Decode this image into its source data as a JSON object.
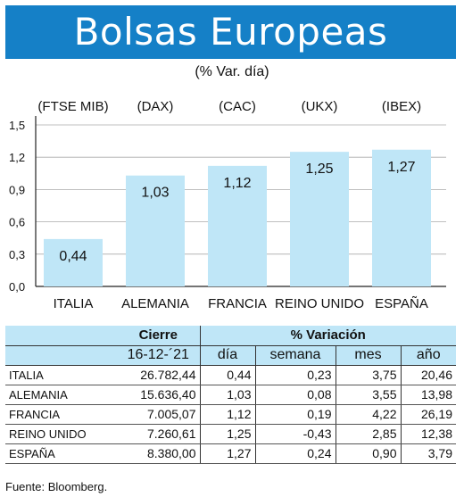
{
  "header": {
    "title": "Bolsas Europeas",
    "subtitle": "(% Var. día)"
  },
  "chart_data": {
    "type": "bar",
    "index_labels": [
      "(FTSE MIB)",
      "(DAX)",
      "(CAC)",
      "(UKX)",
      "(IBEX)"
    ],
    "categories": [
      "ITALIA",
      "ALEMANIA",
      "FRANCIA",
      "REINO UNIDO",
      "ESPAÑA"
    ],
    "values": [
      0.44,
      1.03,
      1.12,
      1.25,
      1.27
    ],
    "value_labels": [
      "0,44",
      "1,03",
      "1,12",
      "1,25",
      "1,27"
    ],
    "yticks": [
      0,
      0.3,
      0.6,
      0.9,
      1.2,
      1.5
    ],
    "ytick_labels": [
      "0,0",
      "0,3",
      "0,6",
      "0,9",
      "1,2",
      "1,5"
    ],
    "ylim": [
      0,
      1.5
    ],
    "bar_color": "#bfe6f7",
    "grid": true
  },
  "table": {
    "group_headers": {
      "close": "Cierre",
      "variation": "% Variación"
    },
    "columns": {
      "date": "16-12-´21",
      "day": "día",
      "week": "semana",
      "month": "mes",
      "year": "año"
    },
    "rows": [
      {
        "name": "ITALIA",
        "close": "26.782,44",
        "day": "0,44",
        "week": "0,23",
        "month": "3,75",
        "year": "20,46"
      },
      {
        "name": "ALEMANIA",
        "close": "15.636,40",
        "day": "1,03",
        "week": "0,08",
        "month": "3,55",
        "year": "13,98"
      },
      {
        "name": "FRANCIA",
        "close": "7.005,07",
        "day": "1,12",
        "week": "0,19",
        "month": "4,22",
        "year": "26,19"
      },
      {
        "name": "REINO UNIDO",
        "close": "7.260,61",
        "day": "1,25",
        "week": "-0,43",
        "month": "2,85",
        "year": "12,38"
      },
      {
        "name": "ESPAÑA",
        "close": "8.380,00",
        "day": "1,27",
        "week": "0,24",
        "month": "0,90",
        "year": "3,79"
      }
    ]
  },
  "footer": {
    "source": "Fuente: Bloomberg."
  },
  "colors": {
    "banner": "#1580c7",
    "bar": "#bfe6f7",
    "table_header": "#bfe6f7"
  }
}
